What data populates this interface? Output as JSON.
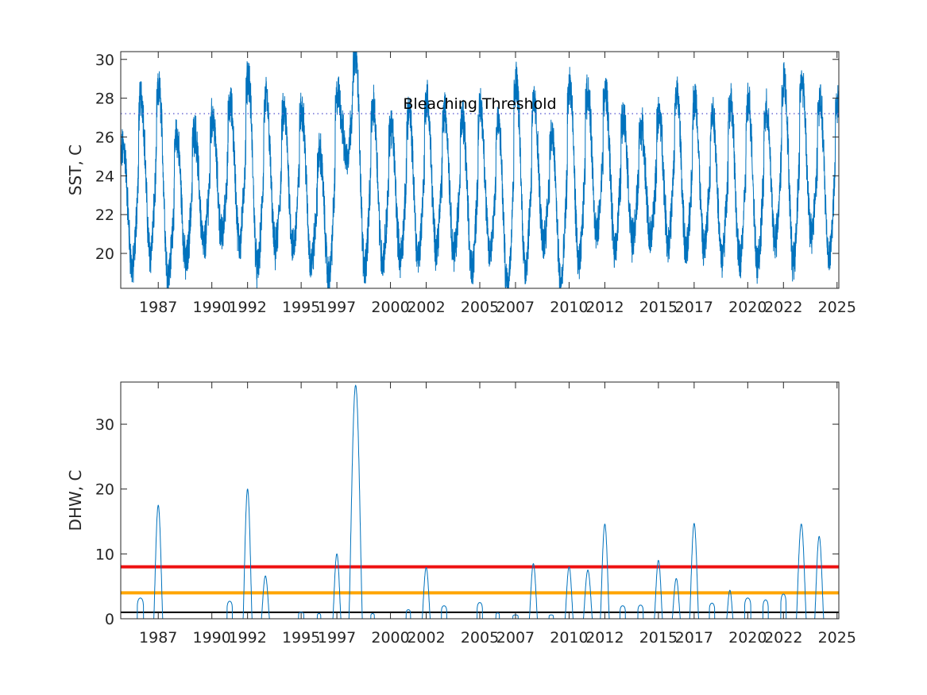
{
  "chart_data": [
    {
      "type": "line",
      "ylabel": "SST, C",
      "xlabel": "",
      "xlim": [
        1985.0,
        2025.2
      ],
      "ylim": [
        18.2,
        30.4
      ],
      "x_ticks": [
        "1987",
        "1990",
        "1992",
        "1995",
        "1997",
        "2000",
        "2002",
        "2005",
        "2007",
        "2010",
        "2012",
        "2015",
        "2017",
        "2020",
        "2022",
        "2025"
      ],
      "y_ticks": [
        20,
        22,
        24,
        26,
        28,
        30
      ],
      "grid": false,
      "threshold": {
        "label": "Bleaching Threshold",
        "value": 27.2,
        "color": "#6f6fd6"
      },
      "series": [
        {
          "color": "#0072bd",
          "summer_peaks": [
            {
              "year": 1985,
              "peak": 25.5,
              "trough": 19.2
            },
            {
              "year": 1986,
              "peak": 28.1,
              "trough": 20.0
            },
            {
              "year": 1987,
              "peak": 28.4,
              "trough": 18.8
            },
            {
              "year": 1988,
              "peak": 26.0,
              "trough": 19.5
            },
            {
              "year": 1989,
              "peak": 26.2,
              "trough": 20.4
            },
            {
              "year": 1990,
              "peak": 27.0,
              "trough": 20.9
            },
            {
              "year": 1991,
              "peak": 27.6,
              "trough": 20.5
            },
            {
              "year": 1992,
              "peak": 29.1,
              "trough": 19.2
            },
            {
              "year": 1993,
              "peak": 28.0,
              "trough": 20.2
            },
            {
              "year": 1994,
              "peak": 27.3,
              "trough": 20.3
            },
            {
              "year": 1995,
              "peak": 27.4,
              "trough": 19.5
            },
            {
              "year": 1996,
              "peak": 25.2,
              "trough": 18.7
            },
            {
              "year": 1997,
              "peak": 28.2,
              "trough": 25.0
            },
            {
              "year": 1998,
              "peak": 30.4,
              "trough": 19.3
            },
            {
              "year": 1999,
              "peak": 27.5,
              "trough": 19.6
            },
            {
              "year": 2000,
              "peak": 26.5,
              "trough": 19.8
            },
            {
              "year": 2001,
              "peak": 27.3,
              "trough": 19.8
            },
            {
              "year": 2002,
              "peak": 28.0,
              "trough": 20.3
            },
            {
              "year": 2003,
              "peak": 27.3,
              "trough": 20.1
            },
            {
              "year": 2004,
              "peak": 26.8,
              "trough": 19.2
            },
            {
              "year": 2005,
              "peak": 27.5,
              "trough": 20.0
            },
            {
              "year": 2006,
              "peak": 26.7,
              "trough": 18.2
            },
            {
              "year": 2007,
              "peak": 28.9,
              "trough": 19.3
            },
            {
              "year": 2008,
              "peak": 27.7,
              "trough": 20.6
            },
            {
              "year": 2009,
              "peak": 26.0,
              "trough": 18.5
            },
            {
              "year": 2010,
              "peak": 28.6,
              "trough": 19.4
            },
            {
              "year": 2011,
              "peak": 28.3,
              "trough": 21.0
            },
            {
              "year": 2012,
              "peak": 28.3,
              "trough": 20.3
            },
            {
              "year": 2013,
              "peak": 27.0,
              "trough": 20.7
            },
            {
              "year": 2014,
              "peak": 26.5,
              "trough": 20.8
            },
            {
              "year": 2015,
              "peak": 27.2,
              "trough": 20.6
            },
            {
              "year": 2016,
              "peak": 28.2,
              "trough": 20.0
            },
            {
              "year": 2017,
              "peak": 28.0,
              "trough": 20.2
            },
            {
              "year": 2018,
              "peak": 27.2,
              "trough": 19.8
            },
            {
              "year": 2019,
              "peak": 27.8,
              "trough": 19.5
            },
            {
              "year": 2020,
              "peak": 27.8,
              "trough": 19.5
            },
            {
              "year": 2021,
              "peak": 27.3,
              "trough": 20.6
            },
            {
              "year": 2022,
              "peak": 28.9,
              "trough": 19.6
            },
            {
              "year": 2023,
              "peak": 28.9,
              "trough": 21.0
            },
            {
              "year": 2024,
              "peak": 27.8,
              "trough": 19.9
            }
          ]
        }
      ]
    },
    {
      "type": "line",
      "ylabel": "DHW, C",
      "xlabel": "",
      "xlim": [
        1985.0,
        2025.2
      ],
      "ylim": [
        0,
        36.5
      ],
      "x_ticks": [
        "1987",
        "1990",
        "1992",
        "1995",
        "1997",
        "2000",
        "2002",
        "2005",
        "2007",
        "2010",
        "2012",
        "2015",
        "2017",
        "2020",
        "2022",
        "2025"
      ],
      "y_ticks": [
        0,
        10,
        20,
        30
      ],
      "grid": false,
      "reference_lines": [
        {
          "value": 8,
          "color": "#ee1111"
        },
        {
          "value": 4,
          "color": "#ffa500"
        },
        {
          "value": 1,
          "color": "#000000"
        }
      ],
      "series": [
        {
          "color": "#0072bd",
          "events": [
            {
              "t": 1986.1,
              "peak": 3.2,
              "dur": 0.35
            },
            {
              "t": 1987.1,
              "peak": 17.5,
              "dur": 0.5
            },
            {
              "t": 1991.1,
              "peak": 2.7,
              "dur": 0.3
            },
            {
              "t": 1992.1,
              "peak": 20.0,
              "dur": 0.5
            },
            {
              "t": 1993.1,
              "peak": 6.6,
              "dur": 0.45
            },
            {
              "t": 1995.1,
              "peak": 1.0,
              "dur": 0.3
            },
            {
              "t": 1996.1,
              "peak": 0.8,
              "dur": 0.2
            },
            {
              "t": 1997.1,
              "peak": 10.0,
              "dur": 0.45
            },
            {
              "t": 1998.15,
              "peak": 36.0,
              "dur": 0.75
            },
            {
              "t": 1999.1,
              "peak": 0.8,
              "dur": 0.2
            },
            {
              "t": 2001.1,
              "peak": 1.4,
              "dur": 0.25
            },
            {
              "t": 2002.1,
              "peak": 7.9,
              "dur": 0.45
            },
            {
              "t": 2003.1,
              "peak": 2.0,
              "dur": 0.3
            },
            {
              "t": 2005.1,
              "peak": 2.5,
              "dur": 0.3
            },
            {
              "t": 2006.1,
              "peak": 0.9,
              "dur": 0.2
            },
            {
              "t": 2007.1,
              "peak": 0.6,
              "dur": 0.3
            },
            {
              "t": 2008.1,
              "peak": 8.5,
              "dur": 0.45
            },
            {
              "t": 2009.1,
              "peak": 0.6,
              "dur": 0.25
            },
            {
              "t": 2010.1,
              "peak": 8.0,
              "dur": 0.45
            },
            {
              "t": 2011.15,
              "peak": 7.5,
              "dur": 0.5
            },
            {
              "t": 2012.1,
              "peak": 14.6,
              "dur": 0.5
            },
            {
              "t": 2013.1,
              "peak": 2.0,
              "dur": 0.3
            },
            {
              "t": 2014.1,
              "peak": 2.1,
              "dur": 0.3
            },
            {
              "t": 2015.1,
              "peak": 9.0,
              "dur": 0.45
            },
            {
              "t": 2016.1,
              "peak": 6.2,
              "dur": 0.45
            },
            {
              "t": 2017.1,
              "peak": 14.7,
              "dur": 0.5
            },
            {
              "t": 2018.1,
              "peak": 2.4,
              "dur": 0.3
            },
            {
              "t": 2019.1,
              "peak": 4.4,
              "dur": 0.35
            },
            {
              "t": 2020.1,
              "peak": 3.2,
              "dur": 0.35
            },
            {
              "t": 2021.1,
              "peak": 2.9,
              "dur": 0.3
            },
            {
              "t": 2022.1,
              "peak": 3.8,
              "dur": 0.3
            },
            {
              "t": 2023.1,
              "peak": 14.6,
              "dur": 0.55
            },
            {
              "t": 2024.1,
              "peak": 12.7,
              "dur": 0.5
            }
          ]
        }
      ]
    }
  ]
}
